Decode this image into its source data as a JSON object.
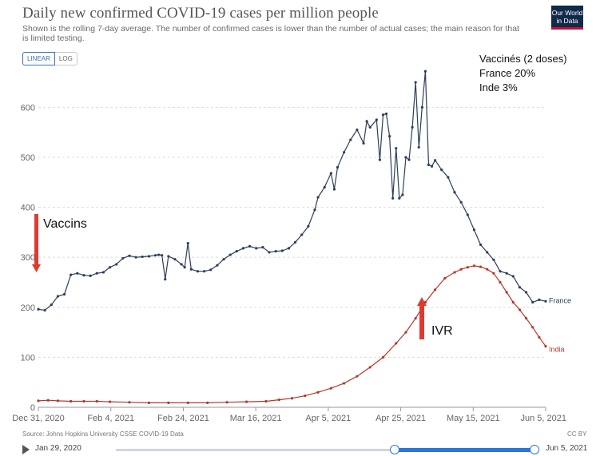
{
  "header": {
    "title": "Daily new confirmed COVID-19 cases per million people",
    "subtitle": "Shown is the rolling 7-day average. The number of confirmed cases is lower than the number of actual cases; the main reason for that is limited testing.",
    "logo_line1": "Our World",
    "logo_line2": "in Data"
  },
  "scale_toggle": {
    "linear": "LINEAR",
    "log": "LOG",
    "selected": "LINEAR"
  },
  "note": {
    "line1": "Vaccinés (2 doses)",
    "line2": "France 20%",
    "line3": "Inde 3%"
  },
  "annotations": {
    "vaccins": "Vaccins",
    "ivr": "IVR",
    "arrow_color": "#e03a2f"
  },
  "footer": {
    "source": "Source: Johns Hopkins University CSSE COVID-19 Data",
    "license": "CC BY"
  },
  "timeline": {
    "start": "Jan 29, 2020",
    "end": "Jun 5, 2021"
  },
  "chart_data": {
    "type": "line",
    "title": "Daily new confirmed COVID-19 cases per million people",
    "xlabel": "",
    "ylabel": "",
    "x_ticks": [
      "Dec 31, 2020",
      "Feb 4, 2021",
      "Feb 24, 2021",
      "Mar 16, 2021",
      "Apr 5, 2021",
      "Apr 25, 2021",
      "May 15, 2021",
      "Jun 5, 2021"
    ],
    "y_ticks": [
      0,
      100,
      200,
      300,
      400,
      500,
      600
    ],
    "xlim_days": [
      0,
      156
    ],
    "ylim": [
      0,
      690
    ],
    "grid": "horizontal dashed",
    "legend": "end-of-line labels",
    "series": [
      {
        "name": "France",
        "color": "#2c3e5a",
        "points": [
          [
            0,
            196
          ],
          [
            2,
            194
          ],
          [
            4,
            205
          ],
          [
            6,
            222
          ],
          [
            8,
            226
          ],
          [
            10,
            265
          ],
          [
            12,
            268
          ],
          [
            14,
            264
          ],
          [
            16,
            263
          ],
          [
            18,
            268
          ],
          [
            20,
            270
          ],
          [
            22,
            280
          ],
          [
            24,
            286
          ],
          [
            26,
            298
          ],
          [
            28,
            303
          ],
          [
            30,
            300
          ],
          [
            32,
            301
          ],
          [
            34,
            302
          ],
          [
            36,
            304
          ],
          [
            37,
            305
          ],
          [
            38,
            304
          ],
          [
            39,
            256
          ],
          [
            40,
            302
          ],
          [
            42,
            296
          ],
          [
            44,
            286
          ],
          [
            45,
            280
          ],
          [
            46,
            328
          ],
          [
            47,
            276
          ],
          [
            49,
            272
          ],
          [
            51,
            272
          ],
          [
            53,
            275
          ],
          [
            55,
            284
          ],
          [
            57,
            296
          ],
          [
            59,
            305
          ],
          [
            61,
            312
          ],
          [
            63,
            318
          ],
          [
            65,
            322
          ],
          [
            67,
            318
          ],
          [
            69,
            320
          ],
          [
            71,
            310
          ],
          [
            73,
            312
          ],
          [
            75,
            313
          ],
          [
            77,
            318
          ],
          [
            79,
            330
          ],
          [
            81,
            345
          ],
          [
            83,
            362
          ],
          [
            85,
            395
          ],
          [
            86,
            420
          ],
          [
            88,
            440
          ],
          [
            90,
            468
          ],
          [
            91,
            436
          ],
          [
            92,
            480
          ],
          [
            94,
            510
          ],
          [
            96,
            535
          ],
          [
            98,
            555
          ],
          [
            100,
            528
          ],
          [
            101,
            572
          ],
          [
            102,
            560
          ],
          [
            104,
            575
          ],
          [
            105,
            495
          ],
          [
            106,
            585
          ],
          [
            107,
            587
          ],
          [
            108,
            542
          ],
          [
            109,
            418
          ],
          [
            110,
            518
          ],
          [
            111,
            418
          ],
          [
            112,
            425
          ],
          [
            113,
            500
          ],
          [
            114,
            495
          ],
          [
            115,
            560
          ],
          [
            116,
            650
          ],
          [
            117,
            520
          ],
          [
            118,
            600
          ],
          [
            119,
            672
          ],
          [
            120,
            485
          ],
          [
            121,
            482
          ],
          [
            122,
            494
          ],
          [
            124,
            475
          ],
          [
            126,
            460
          ],
          [
            128,
            430
          ],
          [
            130,
            410
          ],
          [
            132,
            385
          ],
          [
            134,
            355
          ],
          [
            136,
            325
          ],
          [
            138,
            310
          ],
          [
            140,
            295
          ],
          [
            142,
            272
          ],
          [
            144,
            268
          ],
          [
            146,
            262
          ],
          [
            148,
            240
          ],
          [
            150,
            230
          ],
          [
            152,
            210
          ],
          [
            154,
            215
          ],
          [
            156,
            212
          ]
        ]
      },
      {
        "name": "India",
        "color": "#b5372b",
        "points": [
          [
            0,
            13
          ],
          [
            3,
            14
          ],
          [
            6,
            13
          ],
          [
            10,
            12
          ],
          [
            14,
            12
          ],
          [
            18,
            12
          ],
          [
            22,
            11
          ],
          [
            28,
            10
          ],
          [
            34,
            9
          ],
          [
            40,
            9
          ],
          [
            46,
            9
          ],
          [
            52,
            9
          ],
          [
            58,
            10
          ],
          [
            64,
            11
          ],
          [
            70,
            12
          ],
          [
            74,
            15
          ],
          [
            78,
            18
          ],
          [
            82,
            23
          ],
          [
            86,
            30
          ],
          [
            90,
            38
          ],
          [
            94,
            48
          ],
          [
            98,
            62
          ],
          [
            102,
            80
          ],
          [
            106,
            100
          ],
          [
            110,
            128
          ],
          [
            113,
            150
          ],
          [
            116,
            178
          ],
          [
            119,
            210
          ],
          [
            122,
            235
          ],
          [
            125,
            258
          ],
          [
            128,
            270
          ],
          [
            130,
            276
          ],
          [
            132,
            280
          ],
          [
            134,
            283
          ],
          [
            136,
            281
          ],
          [
            138,
            276
          ],
          [
            140,
            268
          ],
          [
            142,
            250
          ],
          [
            144,
            230
          ],
          [
            146,
            210
          ],
          [
            148,
            195
          ],
          [
            150,
            178
          ],
          [
            152,
            160
          ],
          [
            154,
            140
          ],
          [
            156,
            122
          ]
        ]
      }
    ]
  }
}
